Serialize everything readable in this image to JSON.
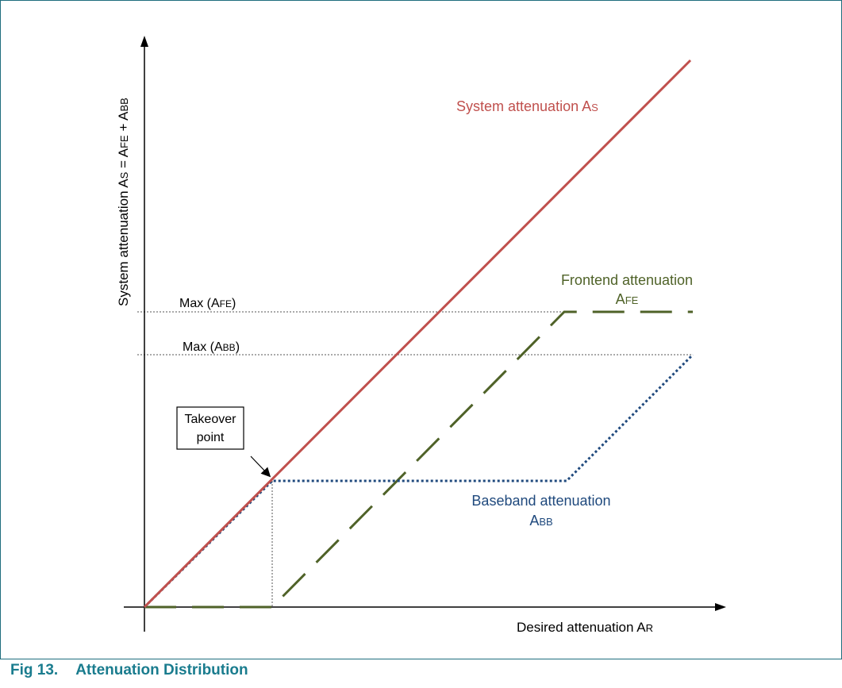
{
  "diagram": {
    "y_axis_label": {
      "main": "System attenuation A",
      "sub1": "S",
      "mid1": " = A",
      "sub2": "FE",
      "mid2": " + A",
      "sub3": "BB"
    },
    "x_axis_label": {
      "main": "Desired attenuation A",
      "sub": "R"
    },
    "max_afe_label": {
      "prefix": "Max (A",
      "sub": "FE",
      "suffix": ")"
    },
    "max_abb_label": {
      "prefix": "Max (A",
      "sub": "BB",
      "suffix": ")"
    },
    "system_label": {
      "main": "System attenuation A",
      "sub": "S"
    },
    "frontend_label": {
      "line1": "Frontend attenuation",
      "line2": "A",
      "sub": "FE"
    },
    "baseband_label": {
      "line1": "Baseband attenuation",
      "line2": "A",
      "sub": "BB"
    },
    "takeover_label": {
      "line1": "Takeover",
      "line2": "point"
    },
    "colors": {
      "system": "#c0504d",
      "frontend": "#4f6228",
      "baseband": "#1f497d",
      "caption": "#1a7c8e",
      "frame": "#1f6d7e"
    }
  },
  "caption": {
    "number": "Fig 13.",
    "title": "Attenuation Distribution"
  }
}
